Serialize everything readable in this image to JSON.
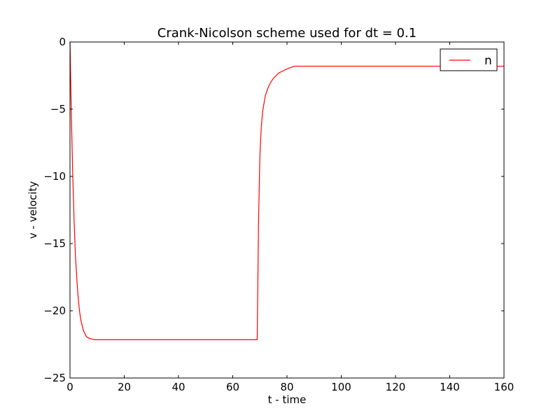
{
  "chart_data": {
    "type": "line",
    "title": "Crank-Nicolson scheme used for dt = 0.1",
    "xlabel": "t - time",
    "ylabel": "v - velocity",
    "xlim": [
      0,
      160
    ],
    "ylim": [
      -25,
      0
    ],
    "x_ticks": [
      0,
      20,
      40,
      60,
      80,
      100,
      120,
      140,
      160
    ],
    "x_tick_labels": [
      "0",
      "20",
      "40",
      "60",
      "80",
      "100",
      "120",
      "140",
      "160"
    ],
    "y_ticks": [
      0,
      -5,
      -10,
      -15,
      -20,
      -25
    ],
    "y_tick_labels": [
      "0",
      "−5",
      "−10",
      "−15",
      "−20",
      "−25"
    ],
    "grid": false,
    "legend_position": "top-right",
    "series": [
      {
        "name": "n",
        "color": "#ff0000",
        "x": [
          0,
          0.5,
          1,
          1.5,
          2,
          2.5,
          3,
          3.5,
          4,
          5,
          6,
          7,
          8,
          9,
          10,
          20,
          30,
          40,
          50,
          60,
          69,
          69.2,
          69.5,
          70,
          70.5,
          71,
          72,
          73,
          74,
          75,
          76,
          77,
          78,
          80,
          82,
          83,
          90,
          100,
          110,
          120,
          130,
          140,
          160
        ],
        "y": [
          0,
          -5.4,
          -9.8,
          -13.2,
          -15.9,
          -17.6,
          -19.0,
          -20.0,
          -20.7,
          -21.5,
          -21.9,
          -22.05,
          -22.1,
          -22.15,
          -22.15,
          -22.15,
          -22.15,
          -22.15,
          -22.15,
          -22.15,
          -22.15,
          -19.0,
          -13.5,
          -8.5,
          -6.4,
          -5.2,
          -4.0,
          -3.4,
          -3.0,
          -2.7,
          -2.5,
          -2.3,
          -2.2,
          -2.0,
          -1.85,
          -1.8,
          -1.8,
          -1.8,
          -1.8,
          -1.8,
          -1.8,
          -1.8,
          -1.8
        ]
      }
    ]
  }
}
